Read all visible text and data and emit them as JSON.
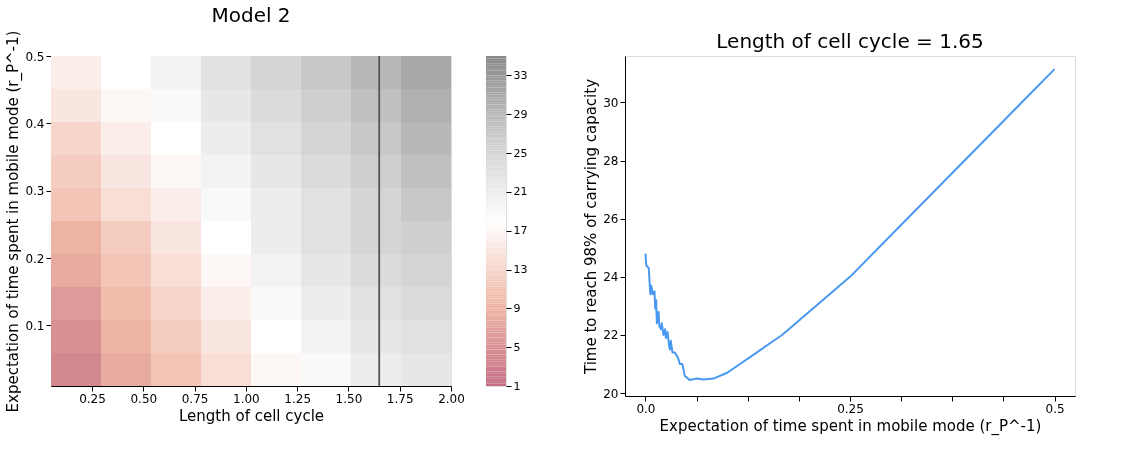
{
  "chart_data": [
    {
      "type": "heatmap",
      "title": "Model 2",
      "xlabel": "Length of cell cycle",
      "ylabel": "Expectation of time spent in mobile mode (r_P^-1)",
      "cells": [
        [
          16,
          18,
          20,
          23,
          25,
          27,
          29,
          31
        ],
        [
          15,
          17,
          19,
          22,
          24,
          26,
          28,
          30
        ],
        [
          13,
          16,
          18,
          21,
          23,
          25,
          27,
          29
        ],
        [
          12,
          15,
          17,
          20,
          22,
          24,
          26,
          28
        ],
        [
          11,
          14,
          16,
          19,
          21,
          23,
          25,
          27
        ],
        [
          9,
          12,
          15,
          18,
          21,
          23,
          25,
          26
        ],
        [
          8,
          11,
          14,
          17,
          20,
          22,
          24,
          25
        ],
        [
          6,
          10,
          13,
          16,
          19,
          21,
          23,
          24
        ],
        [
          5,
          9,
          12,
          15,
          18,
          20,
          22,
          23
        ],
        [
          4,
          8,
          11,
          14,
          17,
          19,
          21,
          22
        ]
      ],
      "colors": [
        "#c46e84",
        "#f0b8a6",
        "#ffffff",
        "#cccccc",
        "#888888"
      ],
      "xlim": [
        0.05,
        2.0
      ],
      "ylim": [
        0.01,
        0.5
      ],
      "xticks": [
        {
          "value": 0.25,
          "label": "0.25"
        },
        {
          "value": 0.5,
          "label": "0.50"
        },
        {
          "value": 0.75,
          "label": "0.75"
        },
        {
          "value": 1.0,
          "label": "1.00"
        },
        {
          "value": 1.25,
          "label": "1.25"
        },
        {
          "value": 1.5,
          "label": "1.50"
        },
        {
          "value": 1.75,
          "label": "1.75"
        },
        {
          "value": 2.0,
          "label": "2.00"
        }
      ],
      "yticks": [
        0.1,
        0.2,
        0.3,
        0.4,
        0.5
      ],
      "clim": [
        1,
        35
      ],
      "cticks": [
        1,
        5,
        9,
        13,
        17,
        21,
        25,
        29,
        33
      ],
      "ref_lines": [
        {
          "axis": "x",
          "value": 1.65,
          "color": "#555555"
        }
      ]
    },
    {
      "type": "line",
      "title": "Length of cell cycle = 1.65",
      "xlabel": "Expectation of time spent in mobile mode (r_P^-1)",
      "ylabel": "Time to reach 98% of carrying capacity",
      "series": [
        {
          "color": "#4a98f0",
          "x": [
            0,
            0.001,
            0.004,
            0.006,
            0.007,
            0.009,
            0.011,
            0.012,
            0.013,
            0.014,
            0.016,
            0.017,
            0.019,
            0.02,
            0.022,
            0.024,
            0.025,
            0.027,
            0.029,
            0.03,
            0.031,
            0.033,
            0.036,
            0.04,
            0.042,
            0.045,
            0.048,
            0.054,
            0.063,
            0.071,
            0.083,
            0.1,
            0.167,
            0.25,
            0.5
          ],
          "values": [
            24.8,
            24.4,
            24.3,
            23.4,
            23.7,
            23.4,
            23.5,
            22.9,
            23.2,
            22.4,
            22.8,
            22.3,
            22.2,
            22.4,
            22.0,
            22.2,
            21.9,
            22.1,
            21.6,
            21.5,
            21.8,
            21.4,
            21.4,
            21.2,
            21.0,
            21.0,
            20.6,
            20.45,
            20.5,
            20.47,
            20.5,
            20.7,
            22.0,
            24.0,
            31.15
          ]
        }
      ],
      "xlim": [
        -0.025,
        0.525
      ],
      "ylim": [
        19.9,
        31.6
      ],
      "xticks": [
        {
          "value": 0,
          "label": "0.0"
        },
        {
          "value": 0.0625,
          "label": null
        },
        {
          "value": 0.125,
          "label": null
        },
        {
          "value": 0.1875,
          "label": null
        },
        0.25,
        {
          "value": 0.3125,
          "label": null
        },
        {
          "value": 0.375,
          "label": null
        },
        {
          "value": 0.4375,
          "label": null
        },
        0.5
      ],
      "yticks": [
        20,
        22,
        24,
        26,
        28,
        30
      ],
      "grid": false,
      "line_style": "solid",
      "marker": "none"
    }
  ]
}
